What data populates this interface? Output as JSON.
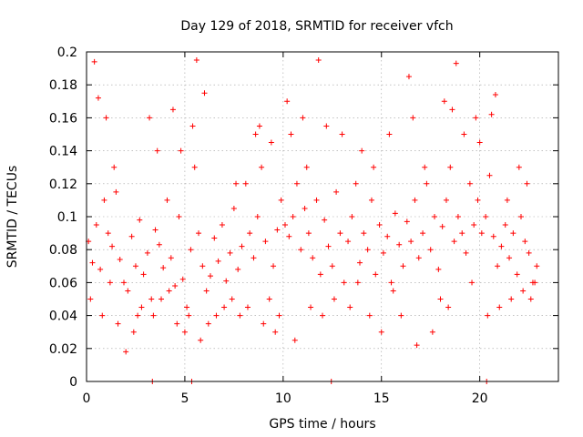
{
  "chart_data": {
    "type": "scatter",
    "title": "Day 129 of 2018, SRMTID for receiver vfch",
    "xlabel": "GPS time / hours",
    "ylabel": "SRMTID / TECUs",
    "xlim": [
      0,
      24
    ],
    "ylim": [
      0,
      0.2
    ],
    "x_ticks": [
      0,
      5,
      10,
      15,
      20
    ],
    "x_tick_labels": [
      "0",
      "5",
      "10",
      "15",
      "20"
    ],
    "y_ticks": [
      0,
      0.02,
      0.04,
      0.06,
      0.08,
      0.1,
      0.12,
      0.14,
      0.16,
      0.18,
      0.2
    ],
    "y_tick_labels": [
      "0",
      "0.02",
      "0.04",
      "0.06",
      "0.08",
      "0.1",
      "0.12",
      "0.14",
      "0.16",
      "0.18",
      "0.2"
    ],
    "grid": true,
    "marker": "+",
    "color": "#ff0000",
    "points_x": [
      0.1,
      0.3,
      0.5,
      0.7,
      0.9,
      1.1,
      1.3,
      1.5,
      1.7,
      1.9,
      2.1,
      2.3,
      2.5,
      2.7,
      2.9,
      3.1,
      3.3,
      3.5,
      3.7,
      3.9,
      4.1,
      4.3,
      4.5,
      4.7,
      4.9,
      5.1,
      5.3,
      5.5,
      5.7,
      5.9,
      6.1,
      6.3,
      6.5,
      6.7,
      6.9,
      7.1,
      7.3,
      7.5,
      7.7,
      7.9,
      8.1,
      8.3,
      8.5,
      8.7,
      8.9,
      9.1,
      9.3,
      9.5,
      9.7,
      9.9,
      10.1,
      10.3,
      10.5,
      10.7,
      10.9,
      11.1,
      11.3,
      11.5,
      11.7,
      11.9,
      12.1,
      12.3,
      12.5,
      12.7,
      12.9,
      13.1,
      13.3,
      13.5,
      13.7,
      13.9,
      14.1,
      14.3,
      14.5,
      14.7,
      14.9,
      15.1,
      15.3,
      15.5,
      15.7,
      15.9,
      16.1,
      16.3,
      16.5,
      16.7,
      16.9,
      17.1,
      17.3,
      17.5,
      17.7,
      17.9,
      18.1,
      18.3,
      18.5,
      18.7,
      18.9,
      19.1,
      19.3,
      19.5,
      19.7,
      19.9,
      20.1,
      20.3,
      20.5,
      20.7,
      20.9,
      21.1,
      21.3,
      21.5,
      21.7,
      21.9,
      22.1,
      22.3,
      22.5,
      22.7,
      22.9,
      0.4,
      0.6,
      1.0,
      1.4,
      2.6,
      3.2,
      3.6,
      4.4,
      4.8,
      5.4,
      5.6,
      6.0,
      7.6,
      8.6,
      8.8,
      9.4,
      10.2,
      10.4,
      11.0,
      11.2,
      11.8,
      12.2,
      13.0,
      14.0,
      14.6,
      15.4,
      16.4,
      16.6,
      17.2,
      18.2,
      18.6,
      18.8,
      19.2,
      19.8,
      20.0,
      20.6,
      20.8,
      21.4,
      22.0,
      22.4,
      0.2,
      0.8,
      1.2,
      1.6,
      2.0,
      2.4,
      2.8,
      3.4,
      3.8,
      4.2,
      4.6,
      5.0,
      5.2,
      5.8,
      6.2,
      6.6,
      7.0,
      7.4,
      7.8,
      8.2,
      9.0,
      9.6,
      9.8,
      10.6,
      11.4,
      12.0,
      12.6,
      13.4,
      13.8,
      14.4,
      15.0,
      15.6,
      16.0,
      16.8,
      17.6,
      18.0,
      18.4,
      19.6,
      20.4,
      21.0,
      21.6,
      22.2,
      22.6,
      22.8
    ],
    "points_y": [
      0.085,
      0.072,
      0.095,
      0.068,
      0.11,
      0.09,
      0.082,
      0.115,
      0.074,
      0.06,
      0.055,
      0.088,
      0.07,
      0.098,
      0.065,
      0.078,
      0.05,
      0.092,
      0.083,
      0.069,
      0.11,
      0.075,
      0.058,
      0.1,
      0.062,
      0.045,
      0.08,
      0.13,
      0.09,
      0.07,
      0.055,
      0.064,
      0.087,
      0.073,
      0.095,
      0.061,
      0.078,
      0.105,
      0.068,
      0.082,
      0.12,
      0.09,
      0.075,
      0.1,
      0.13,
      0.085,
      0.05,
      0.07,
      0.092,
      0.11,
      0.095,
      0.088,
      0.1,
      0.12,
      0.08,
      0.105,
      0.09,
      0.075,
      0.11,
      0.065,
      0.098,
      0.082,
      0.07,
      0.115,
      0.09,
      0.06,
      0.085,
      0.1,
      0.12,
      0.072,
      0.09,
      0.08,
      0.11,
      0.065,
      0.095,
      0.078,
      0.088,
      0.06,
      0.102,
      0.083,
      0.07,
      0.097,
      0.085,
      0.11,
      0.075,
      0.09,
      0.12,
      0.08,
      0.1,
      0.068,
      0.094,
      0.11,
      0.13,
      0.085,
      0.1,
      0.09,
      0.078,
      0.12,
      0.095,
      0.11,
      0.09,
      0.1,
      0.125,
      0.088,
      0.07,
      0.082,
      0.095,
      0.075,
      0.09,
      0.065,
      0.1,
      0.085,
      0.078,
      0.06,
      0.07,
      0.194,
      0.172,
      0.16,
      0.13,
      0.04,
      0.16,
      0.14,
      0.165,
      0.14,
      0.155,
      0.195,
      0.175,
      0.12,
      0.15,
      0.155,
      0.145,
      0.17,
      0.15,
      0.16,
      0.13,
      0.195,
      0.155,
      0.15,
      0.14,
      0.13,
      0.15,
      0.185,
      0.16,
      0.13,
      0.17,
      0.165,
      0.193,
      0.15,
      0.16,
      0.145,
      0.162,
      0.174,
      0.11,
      0.13,
      0.12,
      0.05,
      0.04,
      0.06,
      0.035,
      0.018,
      0.03,
      0.045,
      0.04,
      0.05,
      0.055,
      0.035,
      0.03,
      0.04,
      0.025,
      0.035,
      0.04,
      0.045,
      0.05,
      0.04,
      0.045,
      0.035,
      0.03,
      0.04,
      0.025,
      0.045,
      0.04,
      0.05,
      0.045,
      0.06,
      0.04,
      0.03,
      0.055,
      0.04,
      0.022,
      0.03,
      0.05,
      0.045,
      0.06,
      0.04,
      0.045,
      0.05,
      0.055,
      0.05,
      0.06
    ],
    "zero_markers_x": [
      3.35,
      5.35,
      12.45,
      20.35
    ]
  }
}
